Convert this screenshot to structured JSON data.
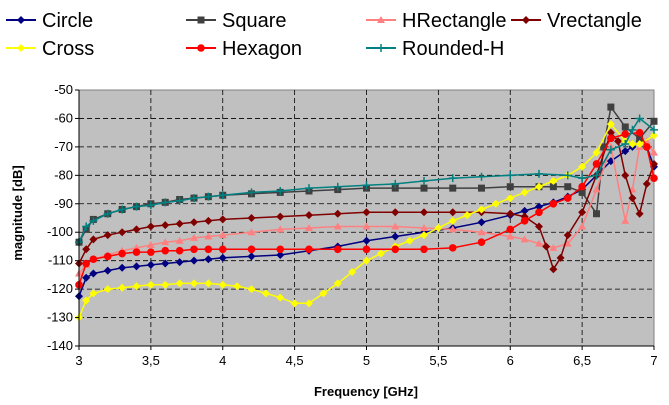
{
  "chart_data": {
    "type": "line",
    "xlabel": "Frequency [GHz]",
    "ylabel": "magnitude [dB]",
    "xlim": [
      3,
      7
    ],
    "ylim": [
      -140,
      -50
    ],
    "x_ticks": [
      3,
      3.5,
      4,
      4.5,
      5,
      5.5,
      6,
      6.5,
      7
    ],
    "x_tick_labels": [
      "3",
      "3,5",
      "4",
      "4,5",
      "5",
      "5,5",
      "6",
      "6,5",
      "7"
    ],
    "y_ticks": [
      -140,
      -130,
      -120,
      -110,
      -100,
      -90,
      -80,
      -70,
      -60,
      -50
    ],
    "y_tick_labels": [
      "-140",
      "-130",
      "-120",
      "-110",
      "-100",
      "-90",
      "-80",
      "-70",
      "-60",
      "-50"
    ],
    "grid": true,
    "plot_background": "#c0c0c0",
    "legend_position": "top",
    "series": [
      {
        "name": "Circle",
        "color": "#000080",
        "marker": "diamond",
        "points": [
          [
            3,
            -122.5
          ],
          [
            3.05,
            -116
          ],
          [
            3.1,
            -114.5
          ],
          [
            3.2,
            -113.5
          ],
          [
            3.3,
            -112.5
          ],
          [
            3.4,
            -112
          ],
          [
            3.5,
            -111.5
          ],
          [
            3.6,
            -111
          ],
          [
            3.7,
            -110.5
          ],
          [
            3.8,
            -110
          ],
          [
            3.9,
            -109.5
          ],
          [
            4,
            -109
          ],
          [
            4.2,
            -108.5
          ],
          [
            4.4,
            -108
          ],
          [
            4.6,
            -106.5
          ],
          [
            4.8,
            -105
          ],
          [
            5,
            -103
          ],
          [
            5.2,
            -101.5
          ],
          [
            5.4,
            -100
          ],
          [
            5.6,
            -98.5
          ],
          [
            5.8,
            -96.5
          ],
          [
            6,
            -94
          ],
          [
            6.1,
            -92.5
          ],
          [
            6.2,
            -91
          ],
          [
            6.3,
            -89.5
          ],
          [
            6.4,
            -87.5
          ],
          [
            6.5,
            -85
          ],
          [
            6.6,
            -80
          ],
          [
            6.7,
            -75
          ],
          [
            6.8,
            -71.5
          ],
          [
            6.85,
            -70
          ],
          [
            6.9,
            -68
          ],
          [
            6.95,
            -70
          ],
          [
            7,
            -77
          ]
        ]
      },
      {
        "name": "Square",
        "color": "#404040",
        "marker": "square",
        "points": [
          [
            3,
            -103.5
          ],
          [
            3.05,
            -99
          ],
          [
            3.1,
            -95.5
          ],
          [
            3.2,
            -93.5
          ],
          [
            3.3,
            -92
          ],
          [
            3.4,
            -91
          ],
          [
            3.5,
            -90
          ],
          [
            3.6,
            -89.5
          ],
          [
            3.7,
            -88.5
          ],
          [
            3.8,
            -88
          ],
          [
            3.9,
            -87.5
          ],
          [
            4,
            -87
          ],
          [
            4.2,
            -86.5
          ],
          [
            4.4,
            -86
          ],
          [
            4.6,
            -85.5
          ],
          [
            4.8,
            -85
          ],
          [
            5,
            -84.5
          ],
          [
            5.2,
            -84.5
          ],
          [
            5.4,
            -84.5
          ],
          [
            5.6,
            -84.5
          ],
          [
            5.8,
            -84.5
          ],
          [
            6,
            -84
          ],
          [
            6.2,
            -84
          ],
          [
            6.3,
            -84
          ],
          [
            6.4,
            -84
          ],
          [
            6.5,
            -86
          ],
          [
            6.6,
            -93.5
          ],
          [
            6.65,
            -70
          ],
          [
            6.7,
            -56
          ],
          [
            6.8,
            -63
          ],
          [
            6.9,
            -67
          ],
          [
            7,
            -61
          ]
        ]
      },
      {
        "name": "HRectangle",
        "color": "#ff8080",
        "marker": "triangle",
        "points": [
          [
            3,
            -114.5
          ],
          [
            3.05,
            -111.5
          ],
          [
            3.1,
            -109.5
          ],
          [
            3.2,
            -108
          ],
          [
            3.3,
            -106.5
          ],
          [
            3.4,
            -105.5
          ],
          [
            3.5,
            -104.5
          ],
          [
            3.6,
            -103.5
          ],
          [
            3.7,
            -103
          ],
          [
            3.8,
            -102
          ],
          [
            3.9,
            -101.5
          ],
          [
            4,
            -101
          ],
          [
            4.2,
            -100
          ],
          [
            4.4,
            -99
          ],
          [
            4.6,
            -98.5
          ],
          [
            4.8,
            -98
          ],
          [
            5,
            -98
          ],
          [
            5.2,
            -98
          ],
          [
            5.4,
            -98.5
          ],
          [
            5.6,
            -99
          ],
          [
            5.8,
            -100
          ],
          [
            6,
            -101.5
          ],
          [
            6.1,
            -102.5
          ],
          [
            6.2,
            -104
          ],
          [
            6.3,
            -105.5
          ],
          [
            6.4,
            -104
          ],
          [
            6.5,
            -98
          ],
          [
            6.6,
            -85
          ],
          [
            6.7,
            -70
          ],
          [
            6.8,
            -96
          ],
          [
            6.85,
            -85
          ],
          [
            6.9,
            -70
          ],
          [
            6.95,
            -68
          ],
          [
            7,
            -72
          ]
        ]
      },
      {
        "name": "Vrectangle",
        "color": "#800000",
        "marker": "diamond",
        "points": [
          [
            3,
            -111
          ],
          [
            3.05,
            -106
          ],
          [
            3.1,
            -102.5
          ],
          [
            3.2,
            -101
          ],
          [
            3.3,
            -100
          ],
          [
            3.4,
            -99
          ],
          [
            3.5,
            -98
          ],
          [
            3.6,
            -97.5
          ],
          [
            3.7,
            -97
          ],
          [
            3.8,
            -96.5
          ],
          [
            3.9,
            -96
          ],
          [
            4,
            -95.5
          ],
          [
            4.2,
            -95
          ],
          [
            4.4,
            -94.5
          ],
          [
            4.6,
            -94
          ],
          [
            4.8,
            -93.5
          ],
          [
            5,
            -93
          ],
          [
            5.2,
            -93
          ],
          [
            5.4,
            -93
          ],
          [
            5.6,
            -93
          ],
          [
            5.8,
            -93
          ],
          [
            6,
            -93.5
          ],
          [
            6.1,
            -94.5
          ],
          [
            6.2,
            -98
          ],
          [
            6.25,
            -105
          ],
          [
            6.3,
            -113
          ],
          [
            6.35,
            -109
          ],
          [
            6.4,
            -101
          ],
          [
            6.5,
            -93
          ],
          [
            6.6,
            -80
          ],
          [
            6.7,
            -65
          ],
          [
            6.75,
            -68
          ],
          [
            6.8,
            -80
          ],
          [
            6.85,
            -88
          ],
          [
            6.9,
            -93.5
          ],
          [
            6.95,
            -83
          ],
          [
            7,
            -76
          ]
        ]
      },
      {
        "name": "Cross",
        "color": "#ffff00",
        "marker": "diamond",
        "points": [
          [
            3,
            -130
          ],
          [
            3.05,
            -124
          ],
          [
            3.1,
            -121.5
          ],
          [
            3.2,
            -120
          ],
          [
            3.3,
            -119.5
          ],
          [
            3.4,
            -119
          ],
          [
            3.5,
            -118.5
          ],
          [
            3.6,
            -118.5
          ],
          [
            3.7,
            -118
          ],
          [
            3.8,
            -118
          ],
          [
            3.9,
            -118
          ],
          [
            4,
            -118.5
          ],
          [
            4.1,
            -119
          ],
          [
            4.2,
            -120
          ],
          [
            4.3,
            -121.5
          ],
          [
            4.4,
            -123
          ],
          [
            4.5,
            -125
          ],
          [
            4.6,
            -125
          ],
          [
            4.7,
            -121.5
          ],
          [
            4.8,
            -118
          ],
          [
            4.9,
            -114
          ],
          [
            5,
            -110
          ],
          [
            5.1,
            -107.5
          ],
          [
            5.2,
            -105
          ],
          [
            5.3,
            -103
          ],
          [
            5.4,
            -101
          ],
          [
            5.5,
            -98.5
          ],
          [
            5.6,
            -96
          ],
          [
            5.7,
            -94
          ],
          [
            5.8,
            -92
          ],
          [
            5.9,
            -90
          ],
          [
            6,
            -88
          ],
          [
            6.1,
            -86
          ],
          [
            6.2,
            -84
          ],
          [
            6.3,
            -82
          ],
          [
            6.4,
            -80
          ],
          [
            6.5,
            -77
          ],
          [
            6.6,
            -72
          ],
          [
            6.7,
            -62
          ],
          [
            6.8,
            -68
          ],
          [
            6.85,
            -69
          ],
          [
            6.9,
            -69
          ],
          [
            7,
            -66
          ]
        ]
      },
      {
        "name": "Hexagon",
        "color": "#ff0000",
        "marker": "circle",
        "points": [
          [
            3,
            -118.5
          ],
          [
            3.05,
            -111
          ],
          [
            3.1,
            -109.5
          ],
          [
            3.2,
            -108.5
          ],
          [
            3.3,
            -107.5
          ],
          [
            3.4,
            -107
          ],
          [
            3.5,
            -107
          ],
          [
            3.6,
            -106.5
          ],
          [
            3.7,
            -106.5
          ],
          [
            3.8,
            -106
          ],
          [
            3.9,
            -106
          ],
          [
            4,
            -106
          ],
          [
            4.2,
            -106
          ],
          [
            4.4,
            -106
          ],
          [
            4.6,
            -106
          ],
          [
            4.8,
            -106
          ],
          [
            5,
            -106
          ],
          [
            5.2,
            -106
          ],
          [
            5.4,
            -106
          ],
          [
            5.6,
            -105.5
          ],
          [
            5.8,
            -103.5
          ],
          [
            6,
            -99
          ],
          [
            6.1,
            -96
          ],
          [
            6.2,
            -93
          ],
          [
            6.3,
            -90
          ],
          [
            6.4,
            -88
          ],
          [
            6.5,
            -84
          ],
          [
            6.6,
            -76
          ],
          [
            6.7,
            -67
          ],
          [
            6.8,
            -65.5
          ],
          [
            6.9,
            -65
          ],
          [
            6.95,
            -70
          ],
          [
            7,
            -81
          ]
        ]
      },
      {
        "name": "Rounded-H",
        "color": "#008080",
        "marker": "plus",
        "points": [
          [
            3,
            -103.5
          ],
          [
            3.05,
            -98
          ],
          [
            3.1,
            -96
          ],
          [
            3.2,
            -93.5
          ],
          [
            3.3,
            -92
          ],
          [
            3.4,
            -91
          ],
          [
            3.5,
            -90.5
          ],
          [
            3.6,
            -89.5
          ],
          [
            3.7,
            -89
          ],
          [
            3.8,
            -88
          ],
          [
            3.9,
            -87.5
          ],
          [
            4,
            -87
          ],
          [
            4.2,
            -86
          ],
          [
            4.4,
            -85.5
          ],
          [
            4.6,
            -84.5
          ],
          [
            4.8,
            -84
          ],
          [
            5,
            -83.5
          ],
          [
            5.2,
            -83
          ],
          [
            5.4,
            -82
          ],
          [
            5.6,
            -81
          ],
          [
            5.8,
            -80.5
          ],
          [
            6,
            -80
          ],
          [
            6.2,
            -79.5
          ],
          [
            6.4,
            -80
          ],
          [
            6.5,
            -81
          ],
          [
            6.6,
            -80
          ],
          [
            6.7,
            -71
          ],
          [
            6.8,
            -69
          ],
          [
            6.85,
            -64
          ],
          [
            6.9,
            -60
          ],
          [
            7,
            -64
          ]
        ]
      }
    ]
  }
}
